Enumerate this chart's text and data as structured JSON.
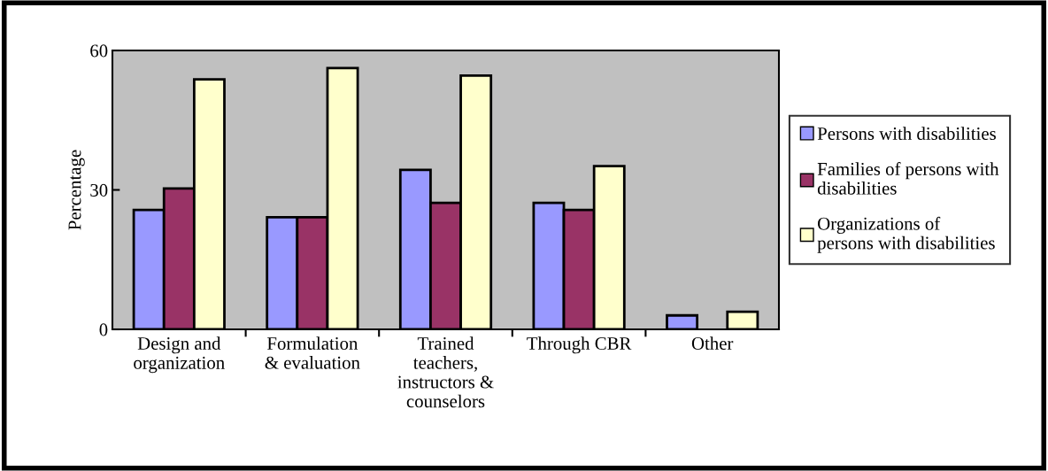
{
  "chart_data": {
    "type": "bar",
    "ylabel": "Percentage",
    "categories": [
      "Design and\norganization",
      "Formulation\n& evaluation",
      "Trained\nteachers,\ninstructors &\ncounselors",
      "Through CBR",
      "Other"
    ],
    "series": [
      {
        "name": "Persons with disabilities",
        "color": "#9999ff",
        "values": [
          25.7,
          24.1,
          34.3,
          27.2,
          3.0
        ]
      },
      {
        "name": "Families of persons with\ndisabilities",
        "color": "#993366",
        "values": [
          30.3,
          24.1,
          27.2,
          25.7,
          null
        ]
      },
      {
        "name": "Organizations of\npersons with disabilities",
        "color": "#ffffcc",
        "values": [
          53.8,
          56.2,
          54.6,
          35.1,
          3.8
        ]
      }
    ],
    "ylim": [
      0,
      60
    ],
    "yticks": [
      0,
      30,
      60
    ],
    "grid": false,
    "legend": "right"
  }
}
